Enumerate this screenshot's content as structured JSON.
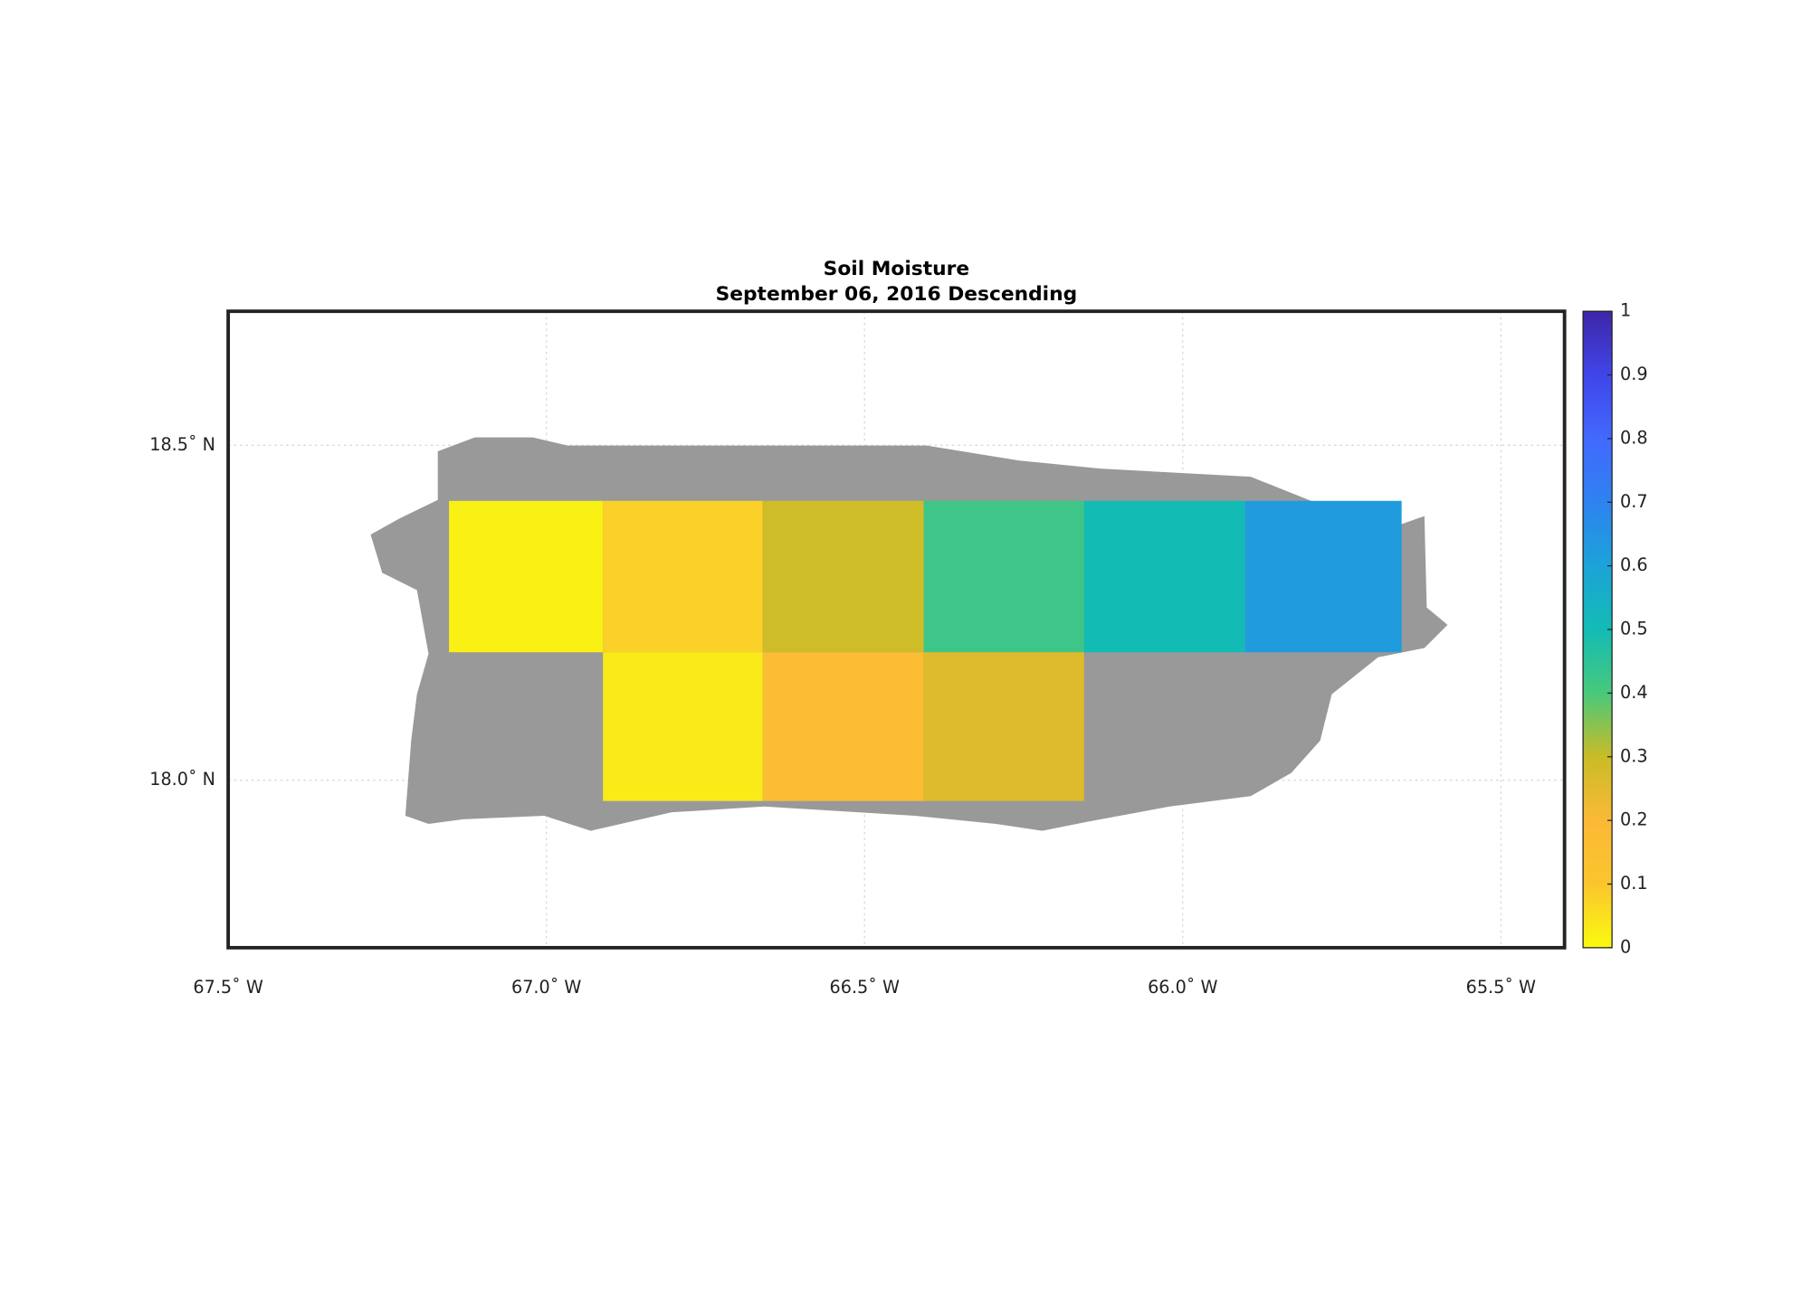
{
  "chart_data": {
    "type": "heatmap",
    "title": "Soil Moisture",
    "subtitle": "September 06, 2016 Descending",
    "x_edges": [
      -67.153,
      -66.911,
      -66.66,
      -66.407,
      -66.155,
      -65.902,
      -65.656
    ],
    "y_edges": [
      18.417,
      18.191,
      17.969
    ],
    "values": [
      [
        0.02,
        0.08,
        0.29,
        0.42,
        0.5,
        0.62
      ],
      [
        null,
        0.03,
        0.17,
        0.26,
        null,
        null
      ]
    ],
    "xlim": [
      -67.5,
      -65.4
    ],
    "ylim": [
      17.75,
      18.7
    ],
    "xticks": [
      {
        "value": -67.5,
        "label": "67.5˚ W"
      },
      {
        "value": -67.0,
        "label": "67.0˚ W"
      },
      {
        "value": -66.5,
        "label": "66.5˚ W"
      },
      {
        "value": -66.0,
        "label": "66.0˚ W"
      },
      {
        "value": -65.5,
        "label": "65.5˚ W"
      }
    ],
    "yticks": [
      {
        "value": 18.0,
        "label": "18.0˚ N"
      },
      {
        "value": 18.5,
        "label": "18.5˚ N"
      }
    ],
    "grid": true,
    "land_color": "#999999",
    "clim": [
      0,
      1
    ],
    "cticks": [
      0,
      0.1,
      0.2,
      0.3,
      0.4,
      0.5,
      0.6,
      0.7,
      0.8,
      0.9,
      1
    ],
    "colormap": [
      "#f9fb0e",
      "#fbc52e",
      "#fbb935",
      "#c9bc26",
      "#48c97b",
      "#13bbb5",
      "#1ca3d9",
      "#2e82f0",
      "#4269fe",
      "#4045e8",
      "#3e26a8"
    ]
  }
}
